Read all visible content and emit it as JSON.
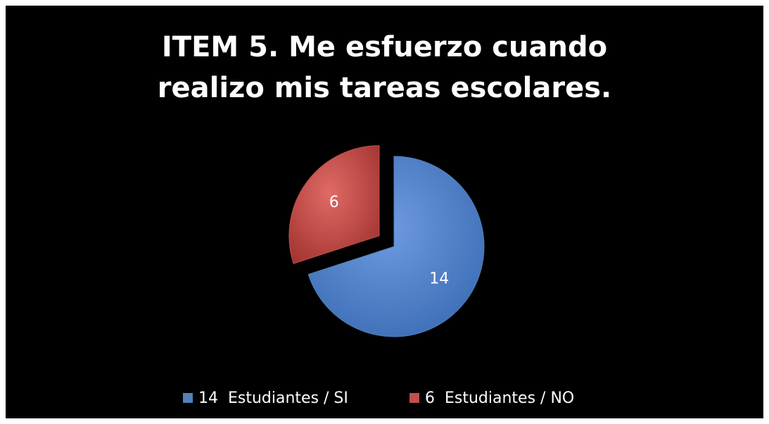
{
  "chart_data": {
    "type": "pie",
    "title": "ITEM 5. Me esfuerzo cuando realizo mis tareas escolares.",
    "categories": [
      "14  Estudiantes / SI",
      "6  Estudiantes / NO"
    ],
    "values": [
      14,
      6
    ],
    "colors": [
      "#4f81bd",
      "#c0504d"
    ],
    "legend": "bottom"
  }
}
